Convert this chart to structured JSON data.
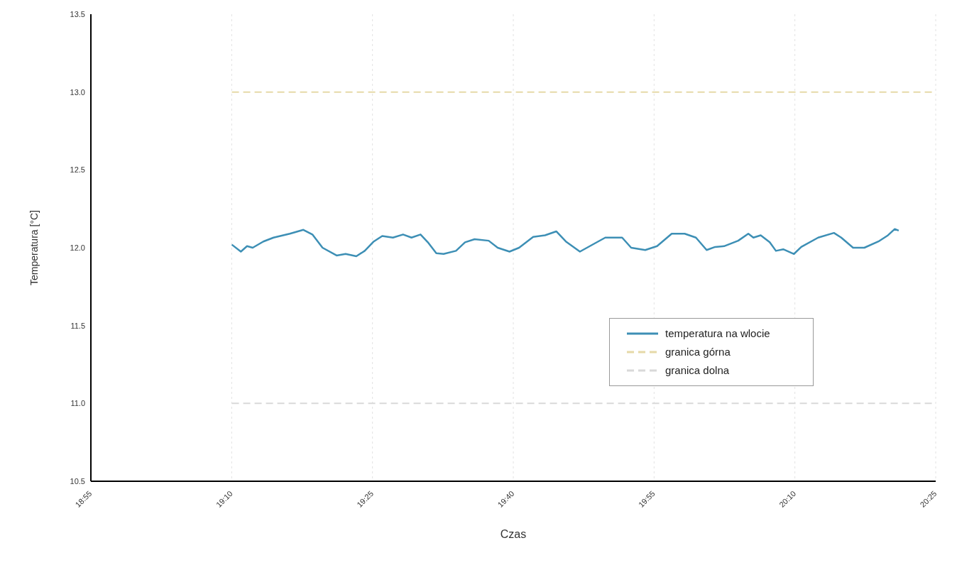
{
  "chart_data": {
    "type": "line",
    "xlabel": "Czas",
    "ylabel": "Temperatura [°C]",
    "legend": "right",
    "grid": "x",
    "marker": "none",
    "xlim": [
      18.9167,
      20.4167
    ],
    "xticks": [
      {
        "value": 18.9167,
        "label": "18:55"
      },
      {
        "value": 19.1667,
        "label": "19:10"
      },
      {
        "value": 19.4167,
        "label": "19:25"
      },
      {
        "value": 19.6667,
        "label": "19:40"
      },
      {
        "value": 19.9167,
        "label": "19:55"
      },
      {
        "value": 20.1667,
        "label": "20:10"
      },
      {
        "value": 20.4167,
        "label": "20:25"
      }
    ],
    "ylim": [
      10.5,
      13.5
    ],
    "yticks": [
      {
        "value": 10.5,
        "label": "10.5"
      },
      {
        "value": 11,
        "label": "11.0"
      },
      {
        "value": 11.5,
        "label": "11.5"
      },
      {
        "value": 12,
        "label": "12.0"
      },
      {
        "value": 12.5,
        "label": "12.5"
      },
      {
        "value": 13,
        "label": "13.0"
      },
      {
        "value": 13.5,
        "label": "13.5"
      }
    ],
    "series": [
      {
        "name": "temperatura na wlocie",
        "color": "#3d8fb5",
        "line_style": "solid",
        "x": [
          19.167,
          19.183,
          19.194,
          19.204,
          19.223,
          19.241,
          19.27,
          19.294,
          19.31,
          19.328,
          19.353,
          19.369,
          19.388,
          19.403,
          19.419,
          19.434,
          19.453,
          19.471,
          19.486,
          19.502,
          19.515,
          19.53,
          19.543,
          19.565,
          19.581,
          19.598,
          19.623,
          19.639,
          19.66,
          19.677,
          19.702,
          19.723,
          19.743,
          19.76,
          19.785,
          19.81,
          19.83,
          19.86,
          19.876,
          19.901,
          19.922,
          19.948,
          19.971,
          19.991,
          20.01,
          20.025,
          20.041,
          20.066,
          20.084,
          20.093,
          20.106,
          20.122,
          20.133,
          20.146,
          20.165,
          20.178,
          20.208,
          20.236,
          20.249,
          20.27,
          20.29,
          20.315,
          20.332,
          20.344,
          20.351
        ],
        "values": [
          12.02,
          11.975,
          12.01,
          12.0,
          12.04,
          12.065,
          12.09,
          12.115,
          12.085,
          12.0,
          11.95,
          11.96,
          11.945,
          11.98,
          12.04,
          12.075,
          12.065,
          12.085,
          12.065,
          12.085,
          12.035,
          11.965,
          11.96,
          11.98,
          12.035,
          12.055,
          12.045,
          12.0,
          11.975,
          12.0,
          12.07,
          12.08,
          12.105,
          12.04,
          11.975,
          12.025,
          12.065,
          12.065,
          12.0,
          11.985,
          12.01,
          12.09,
          12.09,
          12.065,
          11.985,
          12.005,
          12.01,
          12.045,
          12.09,
          12.065,
          12.08,
          12.035,
          11.98,
          11.99,
          11.96,
          12.005,
          12.065,
          12.095,
          12.065,
          12.0,
          12.0,
          12.04,
          12.08,
          12.12,
          12.11
        ]
      },
      {
        "name": "granica górna",
        "color": "#e6d9a8",
        "line_style": "dashed",
        "x": [
          19.167,
          20.4167
        ],
        "values": [
          13.0,
          13.0
        ]
      },
      {
        "name": "granica dolna",
        "color": "#d9d9d9",
        "line_style": "dashed",
        "x": [
          19.167,
          20.4167
        ],
        "values": [
          11.0,
          11.0
        ]
      }
    ]
  }
}
